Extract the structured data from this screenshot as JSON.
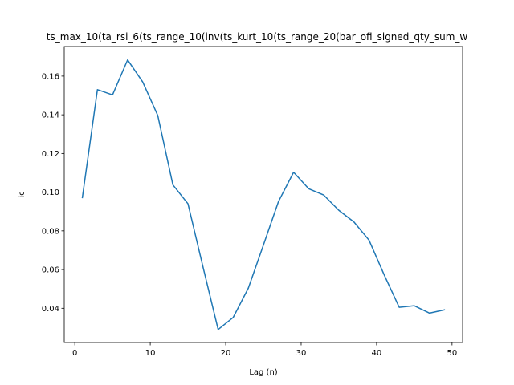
{
  "chart_data": {
    "type": "line",
    "title": "ts_max_10(ta_rsi_6(ts_range_10(inv(ts_kurt_10(ts_range_20(bar_ofi_signed_qty_sum_w",
    "xlabel": "Lag (n)",
    "ylabel": "ic",
    "xlim": [
      -1.4,
      51.4
    ],
    "ylim": [
      0.0223,
      0.1753
    ],
    "xticks": [
      0,
      10,
      20,
      30,
      40,
      50
    ],
    "yticks": [
      0.04,
      0.06,
      0.08,
      0.1,
      0.12,
      0.14,
      0.16
    ],
    "ytick_labels": [
      "0.04",
      "0.06",
      "0.08",
      "0.10",
      "0.12",
      "0.14",
      "0.16"
    ],
    "grid": false,
    "series": [
      {
        "color": "#1f77b4",
        "x": [
          1,
          3,
          5,
          7,
          9,
          11,
          13,
          15,
          17,
          19,
          21,
          23,
          25,
          27,
          29,
          31,
          33,
          35,
          37,
          39,
          41,
          43,
          45,
          47,
          49
        ],
        "values": [
          0.0972,
          0.153,
          0.1503,
          0.1684,
          0.157,
          0.1396,
          0.1038,
          0.094,
          0.0612,
          0.029,
          0.0353,
          0.0504,
          0.0727,
          0.0952,
          0.1103,
          0.1018,
          0.0985,
          0.0906,
          0.0846,
          0.0752,
          0.0573,
          0.0405,
          0.0413,
          0.0375,
          0.0392
        ]
      }
    ]
  }
}
